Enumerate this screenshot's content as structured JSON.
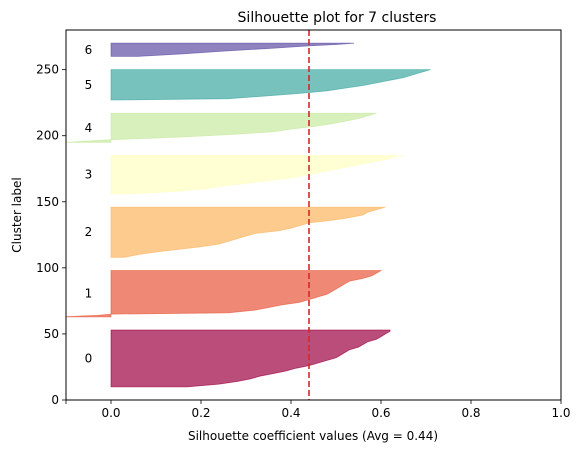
{
  "chart_data": {
    "type": "area",
    "title": "Silhouette plot for 7 clusters",
    "xlabel": "Silhouette coefficient values (Avg = 0.44)",
    "ylabel": "Cluster label",
    "xlim": [
      -0.1,
      1.0
    ],
    "ylim": [
      0,
      280
    ],
    "x_ticks": [
      -0.1,
      0.0,
      0.2,
      0.4,
      0.6,
      0.8,
      1.0
    ],
    "x_tick_labels": [
      "",
      "0.0",
      "0.2",
      "0.4",
      "0.6",
      "0.8",
      "1.0"
    ],
    "y_ticks": [
      0,
      50,
      100,
      150,
      200,
      250
    ],
    "y_tick_labels": [
      "0",
      "50",
      "100",
      "150",
      "200",
      "250"
    ],
    "average_silhouette": 0.44,
    "average_line_color": "#d62728",
    "clusters": [
      {
        "label": "0",
        "color": "#9e0142",
        "y_lower": 10,
        "y_upper": 53,
        "profile": [
          [
            10,
            0.17
          ],
          [
            12,
            0.24
          ],
          [
            14,
            0.28
          ],
          [
            16,
            0.31
          ],
          [
            18,
            0.33
          ],
          [
            20,
            0.36
          ],
          [
            22,
            0.39
          ],
          [
            24,
            0.41
          ],
          [
            26,
            0.44
          ],
          [
            28,
            0.46
          ],
          [
            30,
            0.48
          ],
          [
            32,
            0.5
          ],
          [
            34,
            0.51
          ],
          [
            36,
            0.52
          ],
          [
            38,
            0.53
          ],
          [
            40,
            0.55
          ],
          [
            42,
            0.56
          ],
          [
            44,
            0.57
          ],
          [
            46,
            0.59
          ],
          [
            48,
            0.6
          ],
          [
            50,
            0.61
          ],
          [
            52,
            0.62
          ],
          [
            53,
            0.62
          ]
        ]
      },
      {
        "label": "1",
        "color": "#e8573a",
        "y_lower": 63,
        "y_upper": 98,
        "profile": [
          [
            63,
            -0.11
          ],
          [
            64,
            -0.03
          ],
          [
            65,
            0.0
          ],
          [
            66,
            0.26
          ],
          [
            68,
            0.32
          ],
          [
            70,
            0.35
          ],
          [
            72,
            0.38
          ],
          [
            74,
            0.42
          ],
          [
            76,
            0.44
          ],
          [
            78,
            0.46
          ],
          [
            80,
            0.48
          ],
          [
            82,
            0.49
          ],
          [
            84,
            0.5
          ],
          [
            86,
            0.51
          ],
          [
            88,
            0.52
          ],
          [
            90,
            0.53
          ],
          [
            92,
            0.56
          ],
          [
            94,
            0.58
          ],
          [
            96,
            0.59
          ],
          [
            98,
            0.6
          ]
        ]
      },
      {
        "label": "2",
        "color": "#fdb55f",
        "y_lower": 108,
        "y_upper": 146,
        "profile": [
          [
            108,
            0.03
          ],
          [
            110,
            0.06
          ],
          [
            112,
            0.1
          ],
          [
            114,
            0.15
          ],
          [
            116,
            0.2
          ],
          [
            118,
            0.24
          ],
          [
            120,
            0.26
          ],
          [
            122,
            0.28
          ],
          [
            124,
            0.3
          ],
          [
            126,
            0.32
          ],
          [
            128,
            0.37
          ],
          [
            130,
            0.4
          ],
          [
            132,
            0.42
          ],
          [
            134,
            0.44
          ],
          [
            136,
            0.49
          ],
          [
            138,
            0.53
          ],
          [
            140,
            0.56
          ],
          [
            142,
            0.57
          ],
          [
            144,
            0.59
          ],
          [
            146,
            0.61
          ]
        ]
      },
      {
        "label": "3",
        "color": "#ffffc0",
        "y_lower": 156,
        "y_upper": 185,
        "profile": [
          [
            156,
            0.04
          ],
          [
            158,
            0.15
          ],
          [
            160,
            0.21
          ],
          [
            162,
            0.25
          ],
          [
            164,
            0.3
          ],
          [
            166,
            0.35
          ],
          [
            168,
            0.4
          ],
          [
            170,
            0.43
          ],
          [
            172,
            0.46
          ],
          [
            174,
            0.49
          ],
          [
            176,
            0.52
          ],
          [
            178,
            0.55
          ],
          [
            180,
            0.58
          ],
          [
            182,
            0.61
          ],
          [
            184,
            0.63
          ],
          [
            185,
            0.65
          ]
        ]
      },
      {
        "label": "4",
        "color": "#c7e9a0",
        "y_lower": 195,
        "y_upper": 217,
        "profile": [
          [
            195,
            -0.1
          ],
          [
            197,
            0.0
          ],
          [
            199,
            0.16
          ],
          [
            201,
            0.27
          ],
          [
            203,
            0.36
          ],
          [
            205,
            0.4
          ],
          [
            207,
            0.45
          ],
          [
            209,
            0.49
          ],
          [
            211,
            0.52
          ],
          [
            213,
            0.55
          ],
          [
            215,
            0.57
          ],
          [
            217,
            0.59
          ]
        ]
      },
      {
        "label": "5",
        "color": "#3ea8a2",
        "y_lower": 227,
        "y_upper": 250,
        "profile": [
          [
            227,
            0.0
          ],
          [
            228,
            0.26
          ],
          [
            230,
            0.34
          ],
          [
            232,
            0.42
          ],
          [
            234,
            0.48
          ],
          [
            236,
            0.52
          ],
          [
            238,
            0.56
          ],
          [
            240,
            0.59
          ],
          [
            242,
            0.62
          ],
          [
            244,
            0.65
          ],
          [
            246,
            0.67
          ],
          [
            248,
            0.69
          ],
          [
            250,
            0.71
          ]
        ]
      },
      {
        "label": "6",
        "color": "#5e4fa2",
        "y_lower": 260,
        "y_upper": 270,
        "profile": [
          [
            260,
            0.06
          ],
          [
            261,
            0.11
          ],
          [
            262,
            0.16
          ],
          [
            264,
            0.25
          ],
          [
            266,
            0.35
          ],
          [
            268,
            0.44
          ],
          [
            269,
            0.5
          ],
          [
            270,
            0.54
          ]
        ]
      }
    ]
  }
}
